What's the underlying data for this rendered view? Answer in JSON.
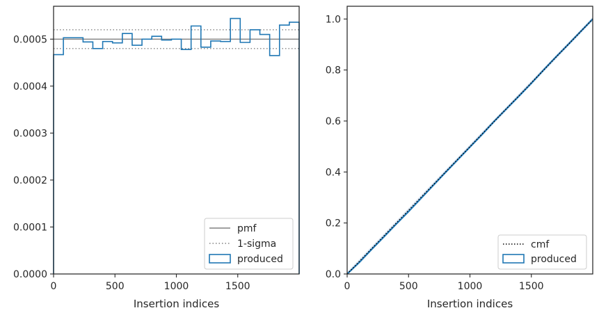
{
  "chart_data": [
    {
      "type": "histogram",
      "xlabel": "Insertion indices",
      "ylabel": "",
      "xlim": [
        0,
        2000
      ],
      "ylim": [
        0,
        0.00057
      ],
      "xticks": [
        0,
        500,
        1000,
        1500
      ],
      "yticks": [
        0.0,
        0.0001,
        0.0002,
        0.0003,
        0.0004,
        0.0005
      ],
      "ytick_labels": [
        "0.0000",
        "0.0001",
        "0.0002",
        "0.0003",
        "0.0004",
        "0.0005"
      ],
      "grid": false,
      "legend_position": "bottom-right",
      "legend": [
        {
          "label": "pmf",
          "style": "solid",
          "color": "#808080"
        },
        {
          "label": "1-sigma",
          "style": "dotted",
          "color": "#808080"
        },
        {
          "label": "produced",
          "style": "step-box",
          "color": "#1f77b4"
        }
      ],
      "pmf": 0.0005,
      "sigma_band": [
        0.00048,
        0.00052
      ],
      "bin_edges": [
        0,
        80,
        160,
        240,
        320,
        400,
        480,
        560,
        640,
        720,
        800,
        880,
        960,
        1040,
        1120,
        1200,
        1280,
        1360,
        1440,
        1520,
        1600,
        1680,
        1760,
        1840,
        1920,
        2000
      ],
      "values": [
        0.000467,
        0.000503,
        0.000503,
        0.000494,
        0.00048,
        0.000495,
        0.000492,
        0.000512,
        0.000487,
        0.0005,
        0.000506,
        0.000498,
        0.0005,
        0.000478,
        0.000528,
        0.000483,
        0.000496,
        0.000495,
        0.000544,
        0.000493,
        0.00052,
        0.00051,
        0.000465,
        0.00053,
        0.000536
      ]
    },
    {
      "type": "line",
      "xlabel": "Insertion indices",
      "ylabel": "",
      "xlim": [
        0,
        2000
      ],
      "ylim": [
        0,
        1.05
      ],
      "xticks": [
        0,
        500,
        1000,
        1500
      ],
      "yticks": [
        0.0,
        0.2,
        0.4,
        0.6,
        0.8,
        1.0
      ],
      "ytick_labels": [
        "0.0",
        "0.2",
        "0.4",
        "0.6",
        "0.8",
        "1.0"
      ],
      "grid": false,
      "legend_position": "bottom-right",
      "legend": [
        {
          "label": "cmf",
          "style": "dotted",
          "color": "#000000"
        },
        {
          "label": "produced",
          "style": "step-box",
          "color": "#1f77b4"
        }
      ],
      "cmf": {
        "x": [
          0,
          2000
        ],
        "y": [
          0,
          1.0
        ]
      },
      "produced": {
        "x": [
          0,
          100,
          200,
          300,
          400,
          500,
          600,
          700,
          800,
          900,
          1000,
          1100,
          1200,
          1300,
          1400,
          1500,
          1600,
          1700,
          1800,
          1900,
          2000
        ],
        "y": [
          0,
          0.046,
          0.097,
          0.146,
          0.196,
          0.245,
          0.296,
          0.347,
          0.398,
          0.448,
          0.498,
          0.548,
          0.6,
          0.649,
          0.698,
          0.748,
          0.8,
          0.851,
          0.9,
          0.95,
          1.0
        ]
      }
    }
  ]
}
